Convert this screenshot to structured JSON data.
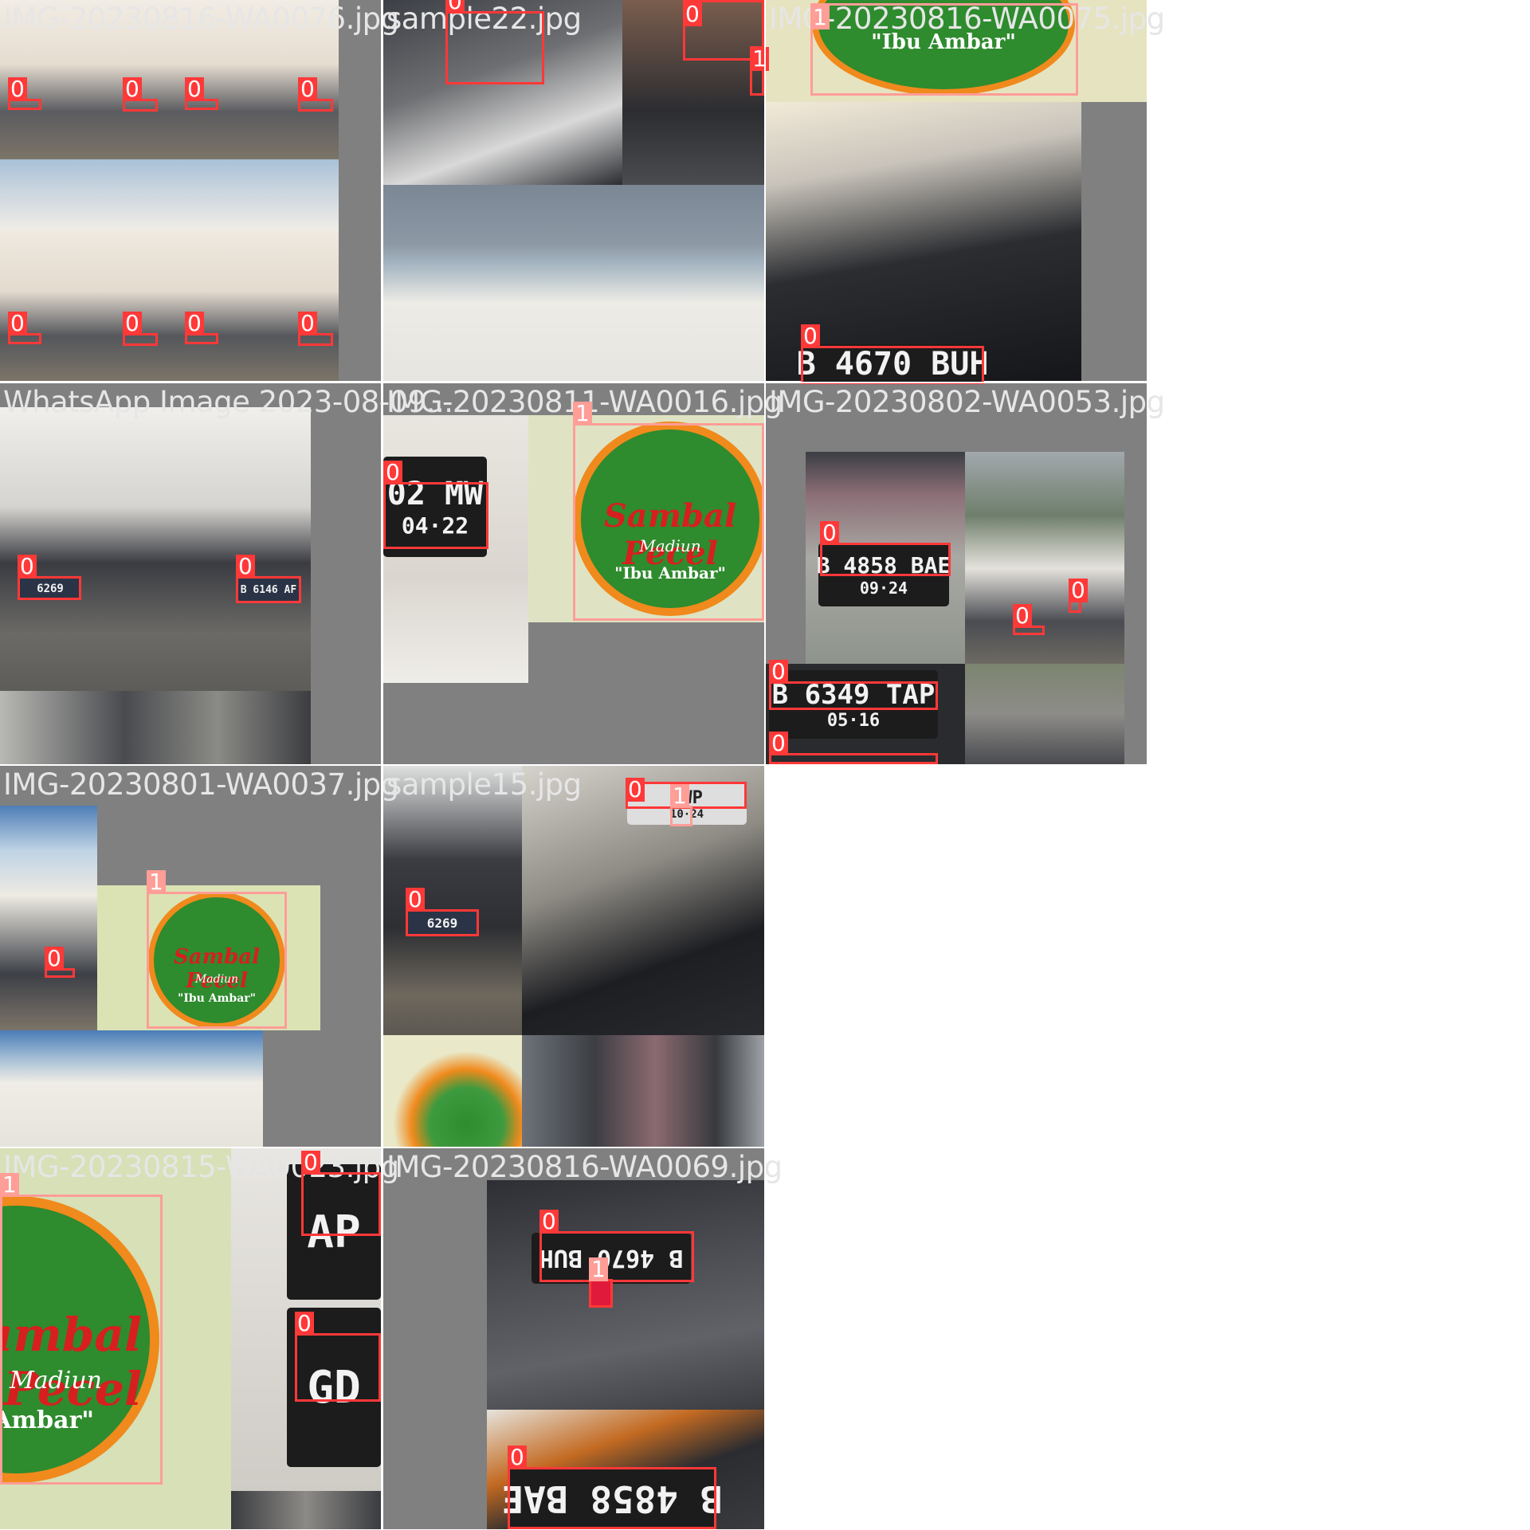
{
  "tiles": [
    {
      "name": "IMG-20230816-WA0076.jpg"
    },
    {
      "name": "sample22.jpg"
    },
    {
      "name": "IMG-20230816-WA0075.jpg"
    },
    {
      "name": "WhatsApp Image 2023-08-09..."
    },
    {
      "name": "IMG-20230811-WA0016.jpg"
    },
    {
      "name": "IMG-20230802-WA0053.jpg"
    },
    {
      "name": "IMG-20230801-WA0037.jpg"
    },
    {
      "name": "sample15.jpg"
    },
    {
      "name": "IMG-20230815-WA0023.jpg"
    },
    {
      "name": "IMG-20230816-WA0069.jpg"
    }
  ],
  "classes": {
    "c0": "0",
    "c1": "1"
  },
  "plates": {
    "p1": "B 4670 BUH",
    "p2": "02 MW",
    "p2b": "04·22",
    "p3": "B 4858 BAE",
    "p3b": "09·24",
    "p4": "B 6349 TAP",
    "p4b": "05·16",
    "p5": "6269",
    "p6": "B 6146 AF",
    "p7": "B 4670 BUH",
    "p8": "B 4858 BAE",
    "p9": "AP",
    "p10": "GD",
    "p11": "BWP",
    "p12": "10·24"
  },
  "sign": {
    "title": "Sambal Pecel",
    "sub": "Madiun",
    "name": "\"Ibu Ambar\""
  },
  "colors": {
    "class0": "#ff3838",
    "class1": "#ff9d97",
    "background": "#808080"
  }
}
